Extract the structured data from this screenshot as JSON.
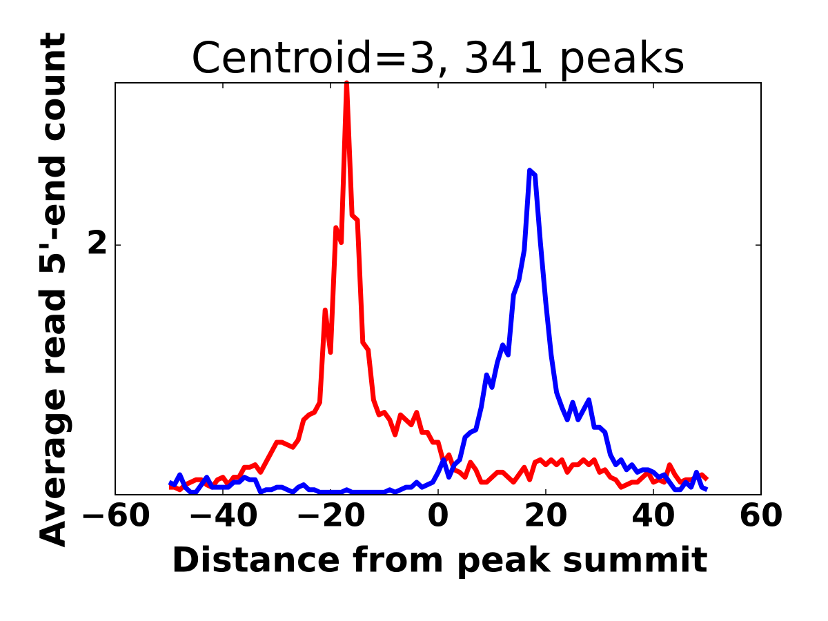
{
  "chart_data": {
    "type": "line",
    "title": "Centroid=3, 341 peaks",
    "xlabel": "Distance from peak summit",
    "ylabel": "Average read 5'-end count",
    "x": [
      -50,
      -49,
      -48,
      -47,
      -46,
      -45,
      -44,
      -43,
      -42,
      -41,
      -40,
      -39,
      -38,
      -37,
      -36,
      -35,
      -34,
      -33,
      -32,
      -31,
      -30,
      -29,
      -28,
      -27,
      -26,
      -25,
      -24,
      -23,
      -22,
      -21,
      -20,
      -19,
      -18,
      -17,
      -16,
      -15,
      -14,
      -13,
      -12,
      -11,
      -10,
      -9,
      -8,
      -7,
      -6,
      -5,
      -4,
      -3,
      -2,
      -1,
      0,
      1,
      2,
      3,
      4,
      5,
      6,
      7,
      8,
      9,
      10,
      11,
      12,
      13,
      14,
      15,
      16,
      17,
      18,
      19,
      20,
      21,
      22,
      23,
      24,
      25,
      26,
      27,
      28,
      29,
      30,
      31,
      32,
      33,
      34,
      35,
      36,
      37,
      38,
      39,
      40,
      41,
      42,
      43,
      44,
      45,
      46,
      47,
      48,
      49,
      50
    ],
    "series": [
      {
        "color": "#ff0000",
        "values": [
          1.03,
          1.03,
          1.02,
          1.04,
          1.05,
          1.06,
          1.06,
          1.04,
          1.03,
          1.06,
          1.07,
          1.04,
          1.07,
          1.07,
          1.11,
          1.11,
          1.12,
          1.09,
          1.13,
          1.17,
          1.21,
          1.21,
          1.2,
          1.19,
          1.22,
          1.3,
          1.32,
          1.33,
          1.37,
          1.74,
          1.57,
          2.07,
          2.01,
          2.65,
          2.12,
          2.1,
          1.61,
          1.58,
          1.38,
          1.32,
          1.33,
          1.3,
          1.24,
          1.32,
          1.3,
          1.28,
          1.33,
          1.25,
          1.25,
          1.21,
          1.21,
          1.13,
          1.16,
          1.1,
          1.09,
          1.07,
          1.13,
          1.1,
          1.05,
          1.05,
          1.07,
          1.09,
          1.09,
          1.07,
          1.05,
          1.08,
          1.11,
          1.06,
          1.13,
          1.14,
          1.12,
          1.14,
          1.12,
          1.14,
          1.09,
          1.12,
          1.12,
          1.14,
          1.12,
          1.14,
          1.09,
          1.1,
          1.07,
          1.06,
          1.03,
          1.04,
          1.05,
          1.05,
          1.07,
          1.09,
          1.05,
          1.06,
          1.05,
          1.12,
          1.08,
          1.05,
          1.06,
          1.06,
          1.07,
          1.08,
          1.06
        ]
      },
      {
        "color": "#0000ff",
        "values": [
          1.05,
          1.04,
          1.08,
          1.03,
          1.01,
          1.01,
          1.04,
          1.07,
          1.03,
          1.03,
          1.03,
          1.03,
          1.05,
          1.05,
          1.07,
          1.06,
          1.06,
          1.01,
          1.02,
          1.02,
          1.03,
          1.03,
          1.02,
          1.01,
          1.03,
          1.04,
          1.02,
          1.02,
          1.01,
          1.01,
          1.01,
          1.01,
          1.01,
          1.02,
          1.01,
          1.01,
          1.01,
          1.01,
          1.01,
          1.01,
          1.01,
          1.02,
          1.01,
          1.02,
          1.03,
          1.03,
          1.05,
          1.03,
          1.04,
          1.05,
          1.09,
          1.14,
          1.07,
          1.12,
          1.14,
          1.23,
          1.25,
          1.26,
          1.35,
          1.48,
          1.43,
          1.53,
          1.6,
          1.56,
          1.8,
          1.86,
          1.98,
          2.3,
          2.28,
          2.01,
          1.77,
          1.56,
          1.41,
          1.35,
          1.3,
          1.37,
          1.3,
          1.34,
          1.38,
          1.27,
          1.27,
          1.25,
          1.16,
          1.12,
          1.14,
          1.1,
          1.12,
          1.09,
          1.1,
          1.1,
          1.09,
          1.07,
          1.08,
          1.05,
          1.02,
          1.02,
          1.05,
          1.03,
          1.09,
          1.03,
          1.02
        ]
      }
    ],
    "xlim": [
      -60,
      60
    ],
    "xticks": [
      {
        "value": -60,
        "label": "−60"
      },
      {
        "value": -40,
        "label": "−40"
      },
      {
        "value": -20,
        "label": "−20"
      },
      0,
      20,
      40,
      60
    ],
    "ylim": [
      1.0,
      2.65
    ],
    "yticks": [
      2
    ]
  }
}
